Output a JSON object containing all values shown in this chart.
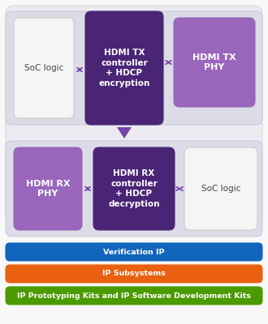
{
  "bg_color": "#dcdce8",
  "outer_bg": "#eaeaf0",
  "dark_purple": "#4a2575",
  "mid_purple": "#9966bb",
  "white_box": "#f5f5f5",
  "white_box_edge": "#cccccc",
  "bar_labels": [
    "Verification IP",
    "IP Subsystems",
    "IP Prototyping Kits and IP Software Development Kits"
  ],
  "bar_colors": [
    "#1166bb",
    "#e86010",
    "#4a9a00"
  ],
  "arrow_color": "#7744aa",
  "text_dark": "#444444",
  "text_white": "#ffffff",
  "soc_logic_tx": "SoC logic",
  "hdmi_tx_ctrl": "HDMI TX\ncontroller\n+ HDCP\nencryption",
  "hdmi_tx_phy": "HDMI TX\nPHY",
  "hdmi_rx_phy": "HDMI RX\nPHY",
  "hdmi_rx_ctrl": "HDMI RX\ncontroller\n+ HDCP\ndecryption",
  "soc_logic_rx": "SoC logic"
}
